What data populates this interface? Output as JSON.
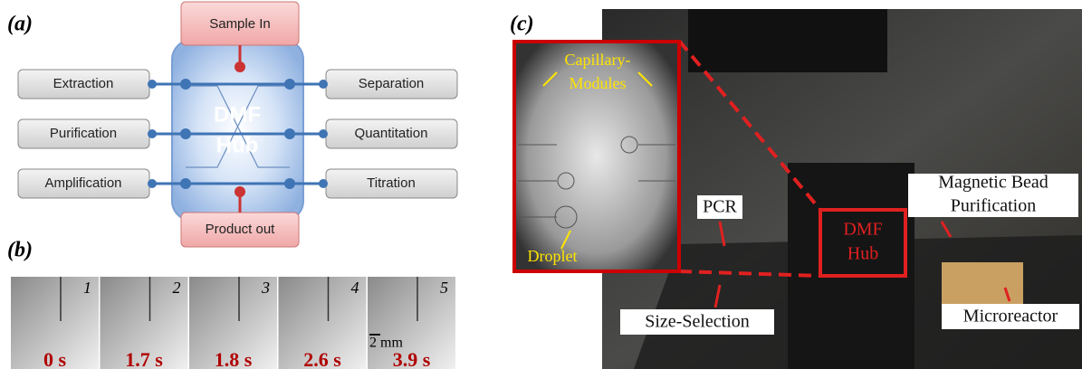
{
  "panel_a": {
    "label": "(a)",
    "hub": [
      "DMF",
      "Hub"
    ],
    "top": "Sample In",
    "bottom": "Product out",
    "left": [
      "Extraction",
      "Purification",
      "Amplification"
    ],
    "right": [
      "Separation",
      "Quantitation",
      "Titration"
    ]
  },
  "panel_b": {
    "label": "(b)",
    "frames": [
      {
        "index": "1",
        "time": "0 s"
      },
      {
        "index": "2",
        "time": "1.7 s"
      },
      {
        "index": "3",
        "time": "1.8 s"
      },
      {
        "index": "4",
        "time": "2.6 s"
      },
      {
        "index": "5",
        "time": "3.9 s"
      }
    ],
    "scale": "2 mm"
  },
  "panel_c": {
    "label": "(c)",
    "inset_label": [
      "Capillary-",
      "Modules"
    ],
    "droplet": "Droplet",
    "hub": [
      "DMF",
      "Hub"
    ],
    "pcr": "PCR",
    "bead": [
      "Magnetic Bead",
      "Purification"
    ],
    "size": "Size-Selection",
    "microreactor": "Microreactor"
  }
}
